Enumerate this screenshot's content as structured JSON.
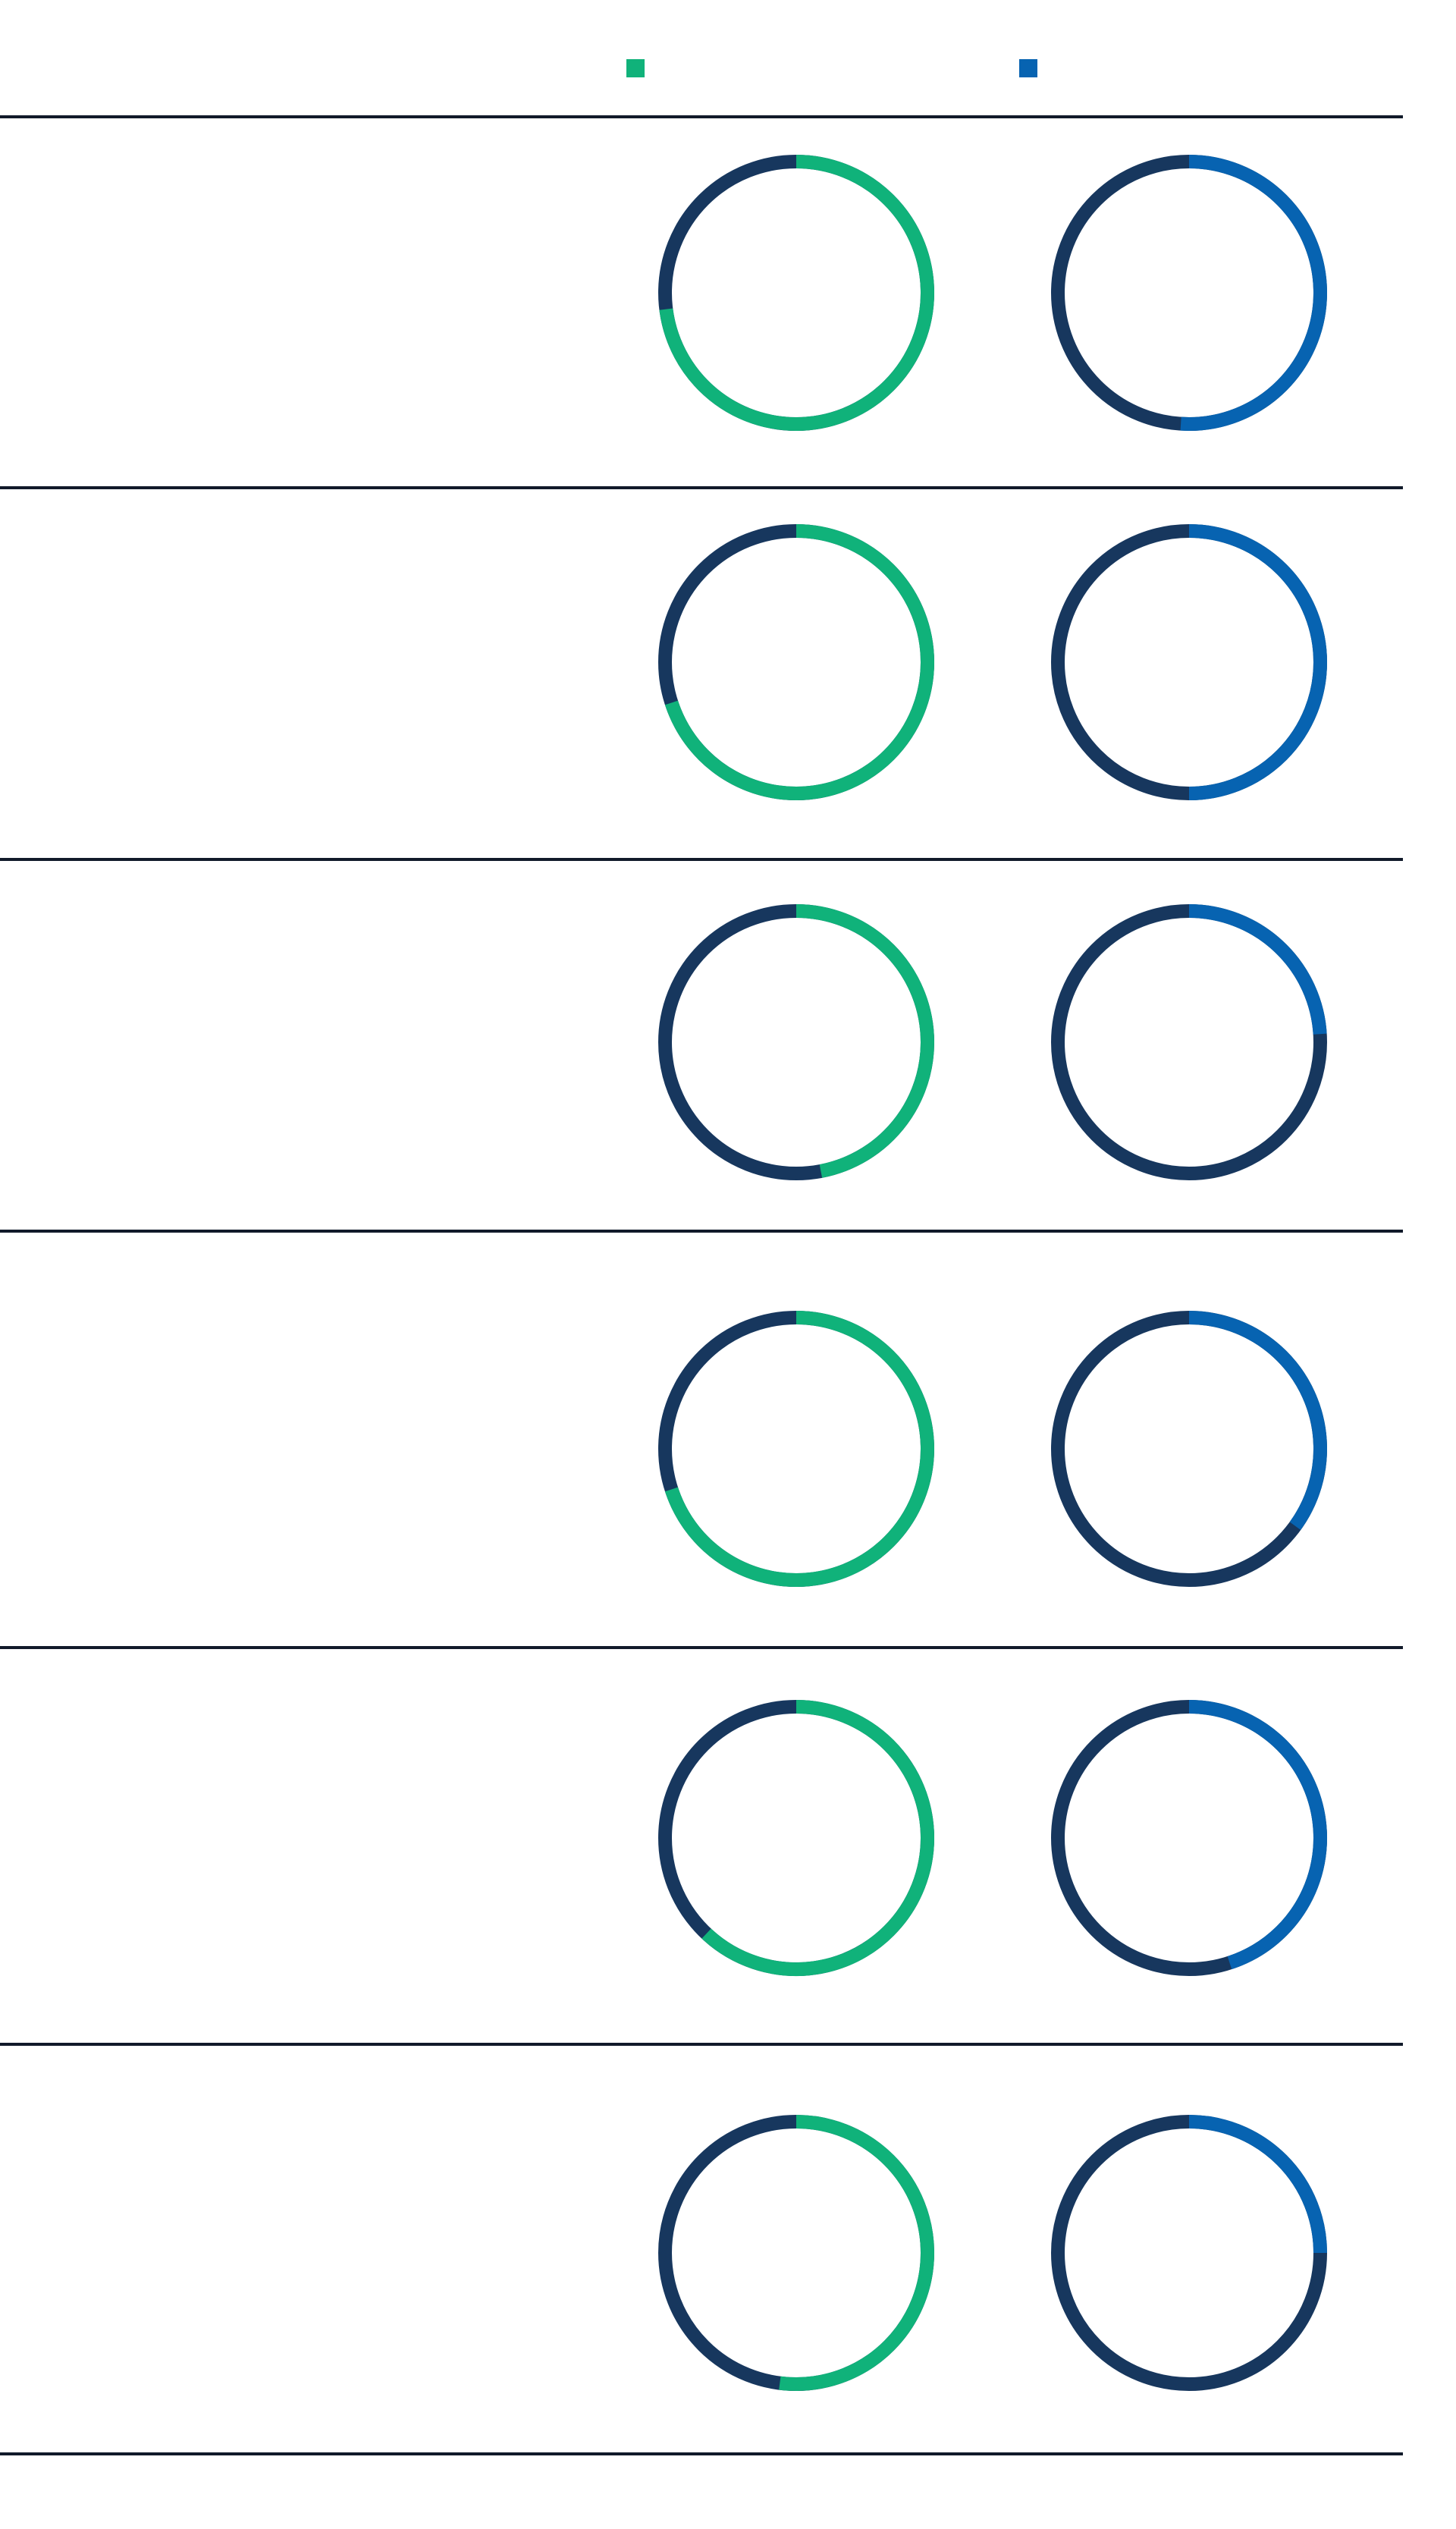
{
  "chart_data": {
    "type": "pie",
    "title": "",
    "legend": {
      "placement": "top",
      "entries": [
        {
          "name": "",
          "color": "#10b27a"
        },
        {
          "name": "",
          "color": "#0763b1"
        }
      ]
    },
    "base_color": "#17375e",
    "divider_color": "#111a2a",
    "columns": [
      {
        "name": "",
        "color": "#10b27a"
      },
      {
        "name": "",
        "color": "#0763b1"
      }
    ],
    "rows": [
      {
        "label": "",
        "values": [
          73.0,
          51.0
        ]
      },
      {
        "label": "",
        "values": [
          70.0,
          50.0
        ]
      },
      {
        "label": "",
        "values": [
          47.0,
          24.0
        ]
      },
      {
        "label": "",
        "values": [
          70.0,
          35.0
        ]
      },
      {
        "label": "",
        "values": [
          62.0,
          45.0
        ]
      },
      {
        "label": "",
        "values": [
          52.0,
          25.0
        ]
      }
    ],
    "value_unit": "%",
    "ylim": [
      0,
      100
    ],
    "grid": false
  }
}
